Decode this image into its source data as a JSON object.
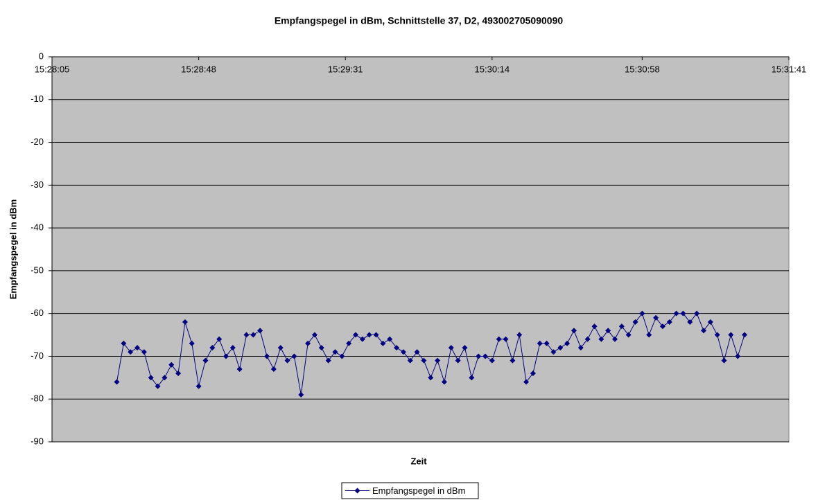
{
  "chart_data": {
    "type": "line",
    "title": "Empfangspegel in dBm, Schnittstelle 37, D2, 493002705090090",
    "x_label": "Zeit",
    "y_label": "Empfangspegel in dBm",
    "x": [
      "15:28:24",
      "15:28:26",
      "15:28:28",
      "15:28:30",
      "15:28:32",
      "15:28:34",
      "15:28:36",
      "15:28:38",
      "15:28:40",
      "15:28:42",
      "15:28:44",
      "15:28:46",
      "15:28:48",
      "15:28:50",
      "15:28:52",
      "15:28:54",
      "15:28:56",
      "15:28:58",
      "15:29:00",
      "15:29:02",
      "15:29:04",
      "15:29:06",
      "15:29:08",
      "15:29:10",
      "15:29:12",
      "15:29:14",
      "15:29:16",
      "15:29:18",
      "15:29:20",
      "15:29:22",
      "15:29:24",
      "15:29:26",
      "15:29:28",
      "15:29:30",
      "15:29:32",
      "15:29:34",
      "15:29:36",
      "15:29:38",
      "15:29:40",
      "15:29:42",
      "15:29:44",
      "15:29:46",
      "15:29:48",
      "15:29:50",
      "15:29:52",
      "15:29:54",
      "15:29:56",
      "15:29:58",
      "15:30:00",
      "15:30:02",
      "15:30:04",
      "15:30:06",
      "15:30:08",
      "15:30:10",
      "15:30:12",
      "15:30:14",
      "15:30:16",
      "15:30:18",
      "15:30:20",
      "15:30:22",
      "15:30:24",
      "15:30:26",
      "15:30:28",
      "15:30:30",
      "15:30:32",
      "15:30:34",
      "15:30:36",
      "15:30:38",
      "15:30:40",
      "15:30:42",
      "15:30:44",
      "15:30:46",
      "15:30:48",
      "15:30:50",
      "15:30:52",
      "15:30:54",
      "15:30:56",
      "15:30:58",
      "15:31:00",
      "15:31:02",
      "15:31:04",
      "15:31:06",
      "15:31:08",
      "15:31:10",
      "15:31:12",
      "15:31:14",
      "15:31:16",
      "15:31:18",
      "15:31:20",
      "15:31:22",
      "15:31:24",
      "15:31:26",
      "15:31:28"
    ],
    "series": [
      {
        "name": "Empfangspegel in dBm",
        "color": "#000080",
        "values": [
          -76,
          -67,
          -69,
          -68,
          -69,
          -75,
          -77,
          -75,
          -72,
          -74,
          -62,
          -67,
          -77,
          -71,
          -68,
          -66,
          -70,
          -68,
          -73,
          -65,
          -65,
          -64,
          -70,
          -73,
          -68,
          -71,
          -70,
          -79,
          -67,
          -65,
          -68,
          -71,
          -69,
          -70,
          -67,
          -65,
          -66,
          -65,
          -65,
          -67,
          -66,
          -68,
          -69,
          -71,
          -69,
          -71,
          -75,
          -71,
          -76,
          -68,
          -71,
          -68,
          -75,
          -70,
          -70,
          -71,
          -66,
          -66,
          -71,
          -65,
          -76,
          -74,
          -67,
          -67,
          -69,
          -68,
          -67,
          -64,
          -68,
          -66,
          -63,
          -66,
          -64,
          -66,
          -63,
          -65,
          -62,
          -60,
          -65,
          -61,
          -63,
          -62,
          -60,
          -60,
          -62,
          -60,
          -64,
          -62,
          -65,
          -71,
          -65,
          -70,
          -65
        ]
      }
    ],
    "xlim": [
      "15:28:05",
      "15:31:41"
    ],
    "xticks": [
      "15:28:05",
      "15:28:48",
      "15:29:31",
      "15:30:14",
      "15:30:58",
      "15:31:41"
    ],
    "ylim": [
      -90,
      0
    ],
    "yticks": [
      0,
      -10,
      -20,
      -30,
      -40,
      -50,
      -60,
      -70,
      -80,
      -90
    ],
    "grid": true,
    "plot_background": "#c0c0c0",
    "legend": "bottom"
  }
}
